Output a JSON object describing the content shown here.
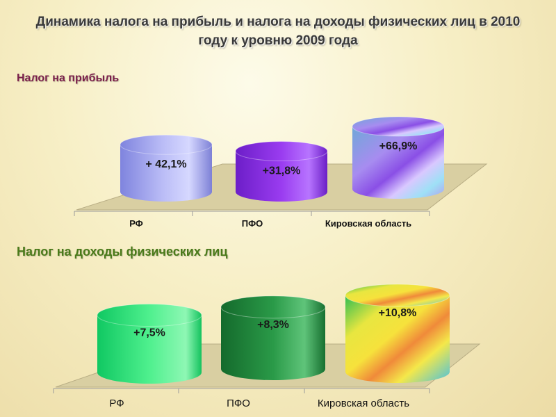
{
  "title": "Динамика налога на прибыль  и налога на доходы физических лиц в 2010 году к уровню 2009 года",
  "chart_data": [
    {
      "type": "bar",
      "title": "Налог на прибыль",
      "categories": [
        "РФ",
        "ПФО",
        "Кировская область"
      ],
      "values": [
        42.1,
        31.8,
        66.9
      ],
      "data_labels": [
        "+ 42,1%",
        "+31,8%",
        "+66,9%"
      ],
      "unit": "%",
      "colors": [
        "#9a9ce6",
        "#8a2ee0",
        "#b2a0f2"
      ]
    },
    {
      "type": "bar",
      "title": "Налог на доходы физических лиц",
      "categories": [
        "РФ",
        "ПФО",
        "Кировская область"
      ],
      "values": [
        7.5,
        8.3,
        10.8
      ],
      "data_labels": [
        "+7,5%",
        "+8,3%",
        "+10,8%"
      ],
      "unit": "%",
      "colors": [
        "#2edc74",
        "#1f8a3e",
        "#e8e04a"
      ]
    }
  ]
}
